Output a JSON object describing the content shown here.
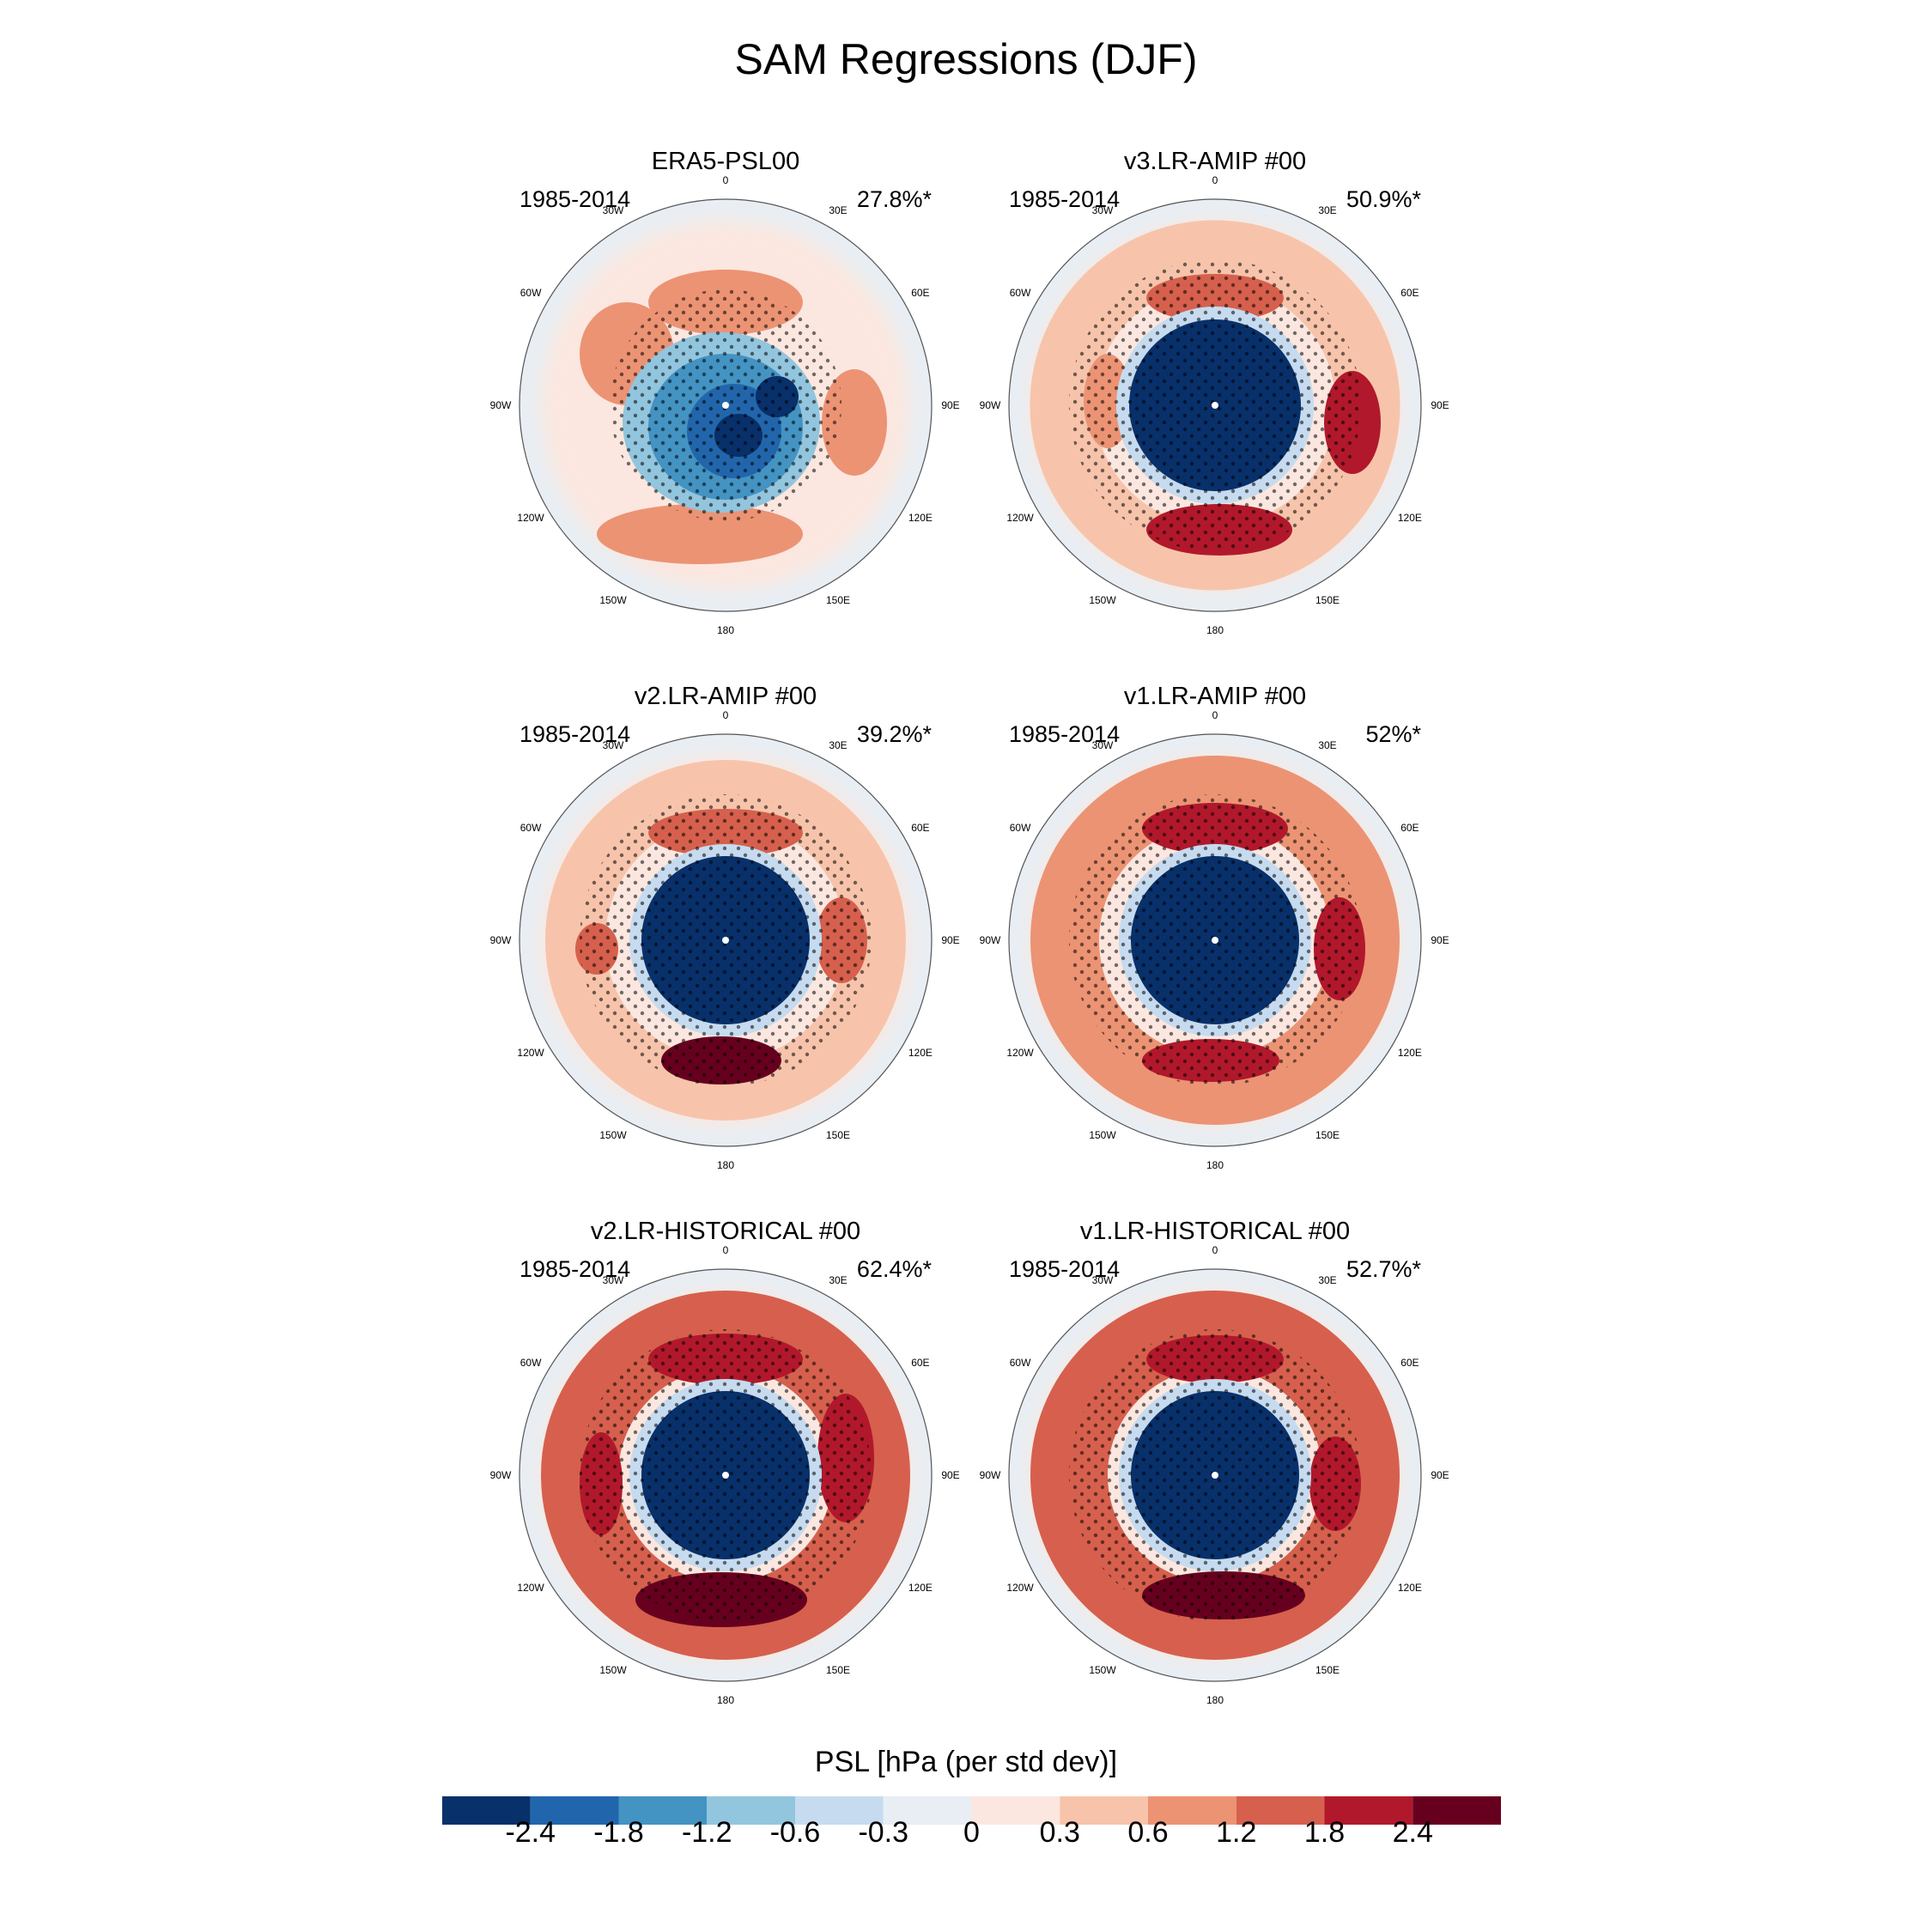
{
  "title": "SAM Regressions (DJF)",
  "panels": [
    {
      "title": "ERA5-PSL00",
      "years": "1985-2014",
      "pct": "27.8%*",
      "style": "era5"
    },
    {
      "title": "v3.LR-AMIP  #00",
      "years": "1985-2014",
      "pct": "50.9%*",
      "style": "v3amip"
    },
    {
      "title": "v2.LR-AMIP  #00",
      "years": "1985-2014",
      "pct": "39.2%*",
      "style": "v2amip"
    },
    {
      "title": "v1.LR-AMIP  #00",
      "years": "1985-2014",
      "pct": "52%*",
      "style": "v1amip"
    },
    {
      "title": "v2.LR-HISTORICAL  #00",
      "years": "1985-2014",
      "pct": "62.4%*",
      "style": "v2hist"
    },
    {
      "title": "v1.LR-HISTORICAL  #00",
      "years": "1985-2014",
      "pct": "52.7%*",
      "style": "v1hist"
    }
  ],
  "lon_labels": [
    "0",
    "30E",
    "60E",
    "90E",
    "120E",
    "150E",
    "180",
    "150W",
    "120W",
    "90W",
    "60W",
    "30W"
  ],
  "colorbar": {
    "title": "PSL [hPa (per std dev)]",
    "tick_labels": [
      "-2.4",
      "-1.8",
      "-1.2",
      "-0.6",
      "-0.3",
      "0",
      "0.3",
      "0.6",
      "1.2",
      "1.8",
      "2.4"
    ],
    "colors": [
      "#08306b",
      "#2166ac",
      "#4393c3",
      "#92c5de",
      "#c6dbef",
      "#e8eef3",
      "#fbe7df",
      "#f7c4ab",
      "#ec9374",
      "#d6604d",
      "#b2182b",
      "#67001f"
    ]
  }
}
